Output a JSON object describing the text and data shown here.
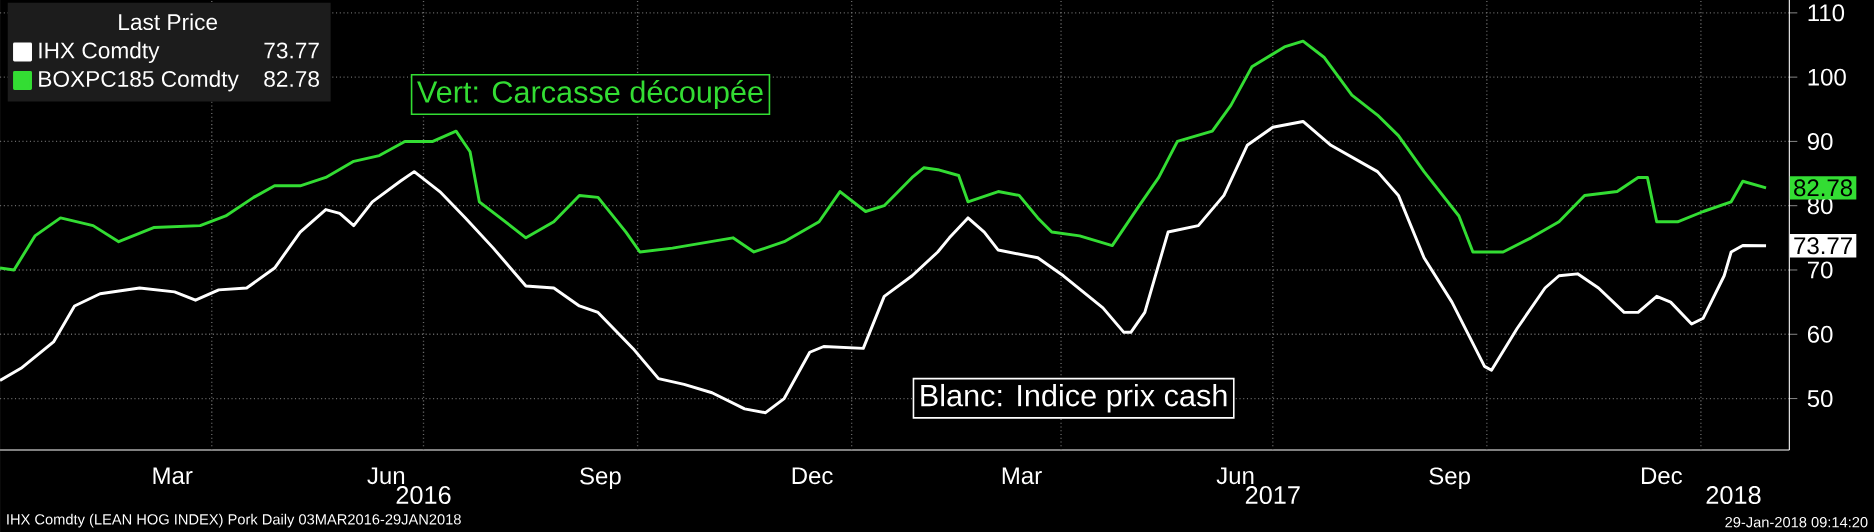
{
  "chart_data": {
    "type": "line",
    "legend_title": "Last Price",
    "legend": "top left",
    "grid": true,
    "line_style": "solid",
    "xlim": [
      "2016-01-01",
      "2018-02-08"
    ],
    "ylim": [
      42,
      112
    ],
    "yticks": [
      50,
      60,
      70,
      80,
      90,
      100,
      110
    ],
    "xticks": [
      {
        "value": "2016-03-15",
        "label": "Mar"
      },
      {
        "value": "2016-04-01",
        "label": null
      },
      {
        "value": "2016-06-15",
        "label": "Jun"
      },
      {
        "value": "2016-07-01",
        "label": null
      },
      {
        "value": "2016-09-15",
        "label": "Sep"
      },
      {
        "value": "2016-10-01",
        "label": null
      },
      {
        "value": "2016-12-15",
        "label": "Dec"
      },
      {
        "value": "2017-01-01",
        "label": null
      },
      {
        "value": "2017-03-15",
        "label": "Mar"
      },
      {
        "value": "2017-04-01",
        "label": null
      },
      {
        "value": "2017-06-15",
        "label": "Jun"
      },
      {
        "value": "2017-07-01",
        "label": null
      },
      {
        "value": "2017-09-15",
        "label": "Sep"
      },
      {
        "value": "2017-10-01",
        "label": null
      },
      {
        "value": "2017-12-15",
        "label": "Dec"
      },
      {
        "value": "2018-01-01",
        "label": null
      }
    ],
    "x2lim": [
      "2016-01-01",
      "2018-02-08"
    ],
    "x2ticks": [
      {
        "value": "2016-07-01",
        "label": "2016"
      },
      {
        "value": "2017-01-01",
        "label": null
      },
      {
        "value": "2017-07-01",
        "label": "2017"
      },
      {
        "value": "2018-01-01",
        "label": null
      },
      {
        "value": "2018-01-15",
        "label": "2018"
      }
    ],
    "annotations": [
      "Vert: Carcasse découpée",
      "Blanc: Indice prix cash",
      "IHX Comdty (LEAN HOG INDEX) Pork  Daily 03MAR2016-29JAN2018",
      "29-Jan-2018 09:14:20"
    ],
    "series": [
      {
        "name": "IHX Comdty",
        "color": "#ffffff",
        "x": [
          "2016-01-01",
          "2016-01-10",
          "2016-01-24",
          "2016-02-02",
          "2016-02-13",
          "2016-03-01",
          "2016-03-16",
          "2016-03-25",
          "2016-04-04",
          "2016-04-16",
          "2016-04-28",
          "2016-05-09",
          "2016-05-20",
          "2016-05-26",
          "2016-06-01",
          "2016-06-09",
          "2016-06-21",
          "2016-06-27",
          "2016-07-08",
          "2016-07-19",
          "2016-07-31",
          "2016-08-14",
          "2016-08-26",
          "2016-09-06",
          "2016-09-14",
          "2016-09-29",
          "2016-10-10",
          "2016-10-21",
          "2016-11-02",
          "2016-11-16",
          "2016-11-25",
          "2016-12-03",
          "2016-12-14",
          "2016-12-20",
          "2017-01-06",
          "2017-01-15",
          "2017-01-27",
          "2017-02-07",
          "2017-02-12",
          "2017-02-20",
          "2017-02-27",
          "2017-03-05",
          "2017-03-22",
          "2017-04-02",
          "2017-04-19",
          "2017-04-28",
          "2017-05-01",
          "2017-05-07",
          "2017-05-17",
          "2017-05-30",
          "2017-06-10",
          "2017-06-20",
          "2017-07-01",
          "2017-07-14",
          "2017-07-26",
          "2017-08-15",
          "2017-08-24",
          "2017-09-04",
          "2017-09-16",
          "2017-09-30",
          "2017-10-03",
          "2017-10-14",
          "2017-10-26",
          "2017-11-01",
          "2017-11-09",
          "2017-11-18",
          "2017-11-29",
          "2017-12-05",
          "2017-12-13",
          "2017-12-19",
          "2017-12-28",
          "2018-01-02",
          "2018-01-11",
          "2018-01-14",
          "2018-01-19",
          "2018-01-29"
        ],
        "values": [
          52.8,
          54.7,
          58.8,
          64.4,
          66.3,
          67.2,
          66.6,
          65.3,
          66.9,
          67.2,
          70.3,
          75.9,
          79.4,
          78.8,
          76.9,
          80.6,
          83.8,
          85.3,
          82.2,
          78.1,
          73.4,
          67.5,
          67.2,
          64.4,
          63.4,
          57.8,
          53.1,
          52.2,
          50.9,
          48.4,
          47.8,
          50,
          57.2,
          58.1,
          57.8,
          65.9,
          69.1,
          72.8,
          75,
          78.1,
          75.9,
          73.1,
          71.9,
          69.1,
          64.1,
          60.3,
          60.3,
          63.4,
          75.9,
          76.9,
          81.6,
          89.4,
          92.2,
          93.1,
          89.4,
          85.3,
          81.6,
          71.9,
          65,
          55,
          54.4,
          60.9,
          67.2,
          69.1,
          69.4,
          67.2,
          63.4,
          63.4,
          65.9,
          65,
          61.6,
          62.5,
          69.1,
          72.8,
          73.8,
          73.77
        ],
        "value_labels": [
          null,
          null,
          null,
          null,
          null,
          null,
          null,
          null,
          null,
          null,
          null,
          null,
          null,
          null,
          null,
          null,
          null,
          null,
          null,
          null,
          null,
          null,
          null,
          null,
          null,
          null,
          null,
          null,
          null,
          null,
          null,
          null,
          null,
          null,
          null,
          null,
          null,
          null,
          null,
          null,
          null,
          null,
          null,
          null,
          null,
          null,
          null,
          null,
          null,
          null,
          null,
          null,
          null,
          null,
          null,
          null,
          null,
          null,
          null,
          null,
          null,
          null,
          null,
          null,
          null,
          null,
          null,
          null,
          null,
          null,
          null,
          null,
          null,
          null,
          null,
          "73.77"
        ]
      },
      {
        "name": "BOXPC185 Comdty",
        "color": "#33dd33",
        "x": [
          "2016-01-01",
          "2016-01-07",
          "2016-01-16",
          "2016-01-27",
          "2016-02-10",
          "2016-02-21",
          "2016-03-07",
          "2016-03-27",
          "2016-04-07",
          "2016-04-19",
          "2016-04-28",
          "2016-05-09",
          "2016-05-20",
          "2016-06-01",
          "2016-06-12",
          "2016-06-23",
          "2016-07-05",
          "2016-07-15",
          "2016-07-21",
          "2016-07-25",
          "2016-08-03",
          "2016-08-14",
          "2016-08-26",
          "2016-09-06",
          "2016-09-14",
          "2016-09-26",
          "2016-10-02",
          "2016-10-16",
          "2016-11-11",
          "2016-11-20",
          "2016-12-03",
          "2016-12-18",
          "2016-12-27",
          "2017-01-07",
          "2017-01-15",
          "2017-01-27",
          "2017-02-01",
          "2017-02-07",
          "2017-02-16",
          "2017-02-20",
          "2017-03-05",
          "2017-03-14",
          "2017-03-22",
          "2017-03-28",
          "2017-04-09",
          "2017-04-23",
          "2017-05-04",
          "2017-05-13",
          "2017-05-21",
          "2017-06-05",
          "2017-06-13",
          "2017-06-22",
          "2017-07-06",
          "2017-07-14",
          "2017-07-23",
          "2017-08-04",
          "2017-08-15",
          "2017-08-24",
          "2017-09-04",
          "2017-09-19",
          "2017-09-25",
          "2017-10-08",
          "2017-10-20",
          "2017-11-01",
          "2017-11-12",
          "2017-11-26",
          "2017-12-05",
          "2017-12-09",
          "2017-12-13",
          "2017-12-22",
          "2018-01-02",
          "2018-01-14",
          "2018-01-19",
          "2018-01-29"
        ],
        "values": [
          70.3,
          70,
          75.3,
          78.1,
          76.9,
          74.4,
          76.6,
          76.9,
          78.4,
          81.3,
          83.1,
          83.1,
          84.4,
          86.9,
          87.8,
          90,
          90,
          91.6,
          88.4,
          80.6,
          78.1,
          75,
          77.5,
          81.6,
          81.3,
          75.9,
          72.8,
          73.4,
          75,
          72.8,
          74.4,
          77.5,
          82.2,
          79.1,
          80,
          84.4,
          85.9,
          85.6,
          84.7,
          80.6,
          82.2,
          81.6,
          78.1,
          75.9,
          75.3,
          73.8,
          79.7,
          84.4,
          90,
          91.6,
          95.6,
          101.6,
          104.7,
          105.6,
          103.1,
          97.2,
          94.1,
          90.9,
          85.3,
          78.4,
          72.8,
          72.8,
          75,
          77.5,
          81.6,
          82.2,
          84.4,
          84.4,
          77.5,
          77.5,
          79.1,
          80.6,
          83.8,
          82.78
        ],
        "value_labels": [
          null,
          null,
          null,
          null,
          null,
          null,
          null,
          null,
          null,
          null,
          null,
          null,
          null,
          null,
          null,
          null,
          null,
          null,
          null,
          null,
          null,
          null,
          null,
          null,
          null,
          null,
          null,
          null,
          null,
          null,
          null,
          null,
          null,
          null,
          null,
          null,
          null,
          null,
          null,
          null,
          null,
          null,
          null,
          null,
          null,
          null,
          null,
          null,
          null,
          null,
          null,
          null,
          null,
          null,
          null,
          null,
          null,
          null,
          null,
          null,
          null,
          null,
          null,
          null,
          null,
          null,
          null,
          null,
          null,
          null,
          null,
          null,
          null,
          "82.78"
        ]
      }
    ]
  }
}
